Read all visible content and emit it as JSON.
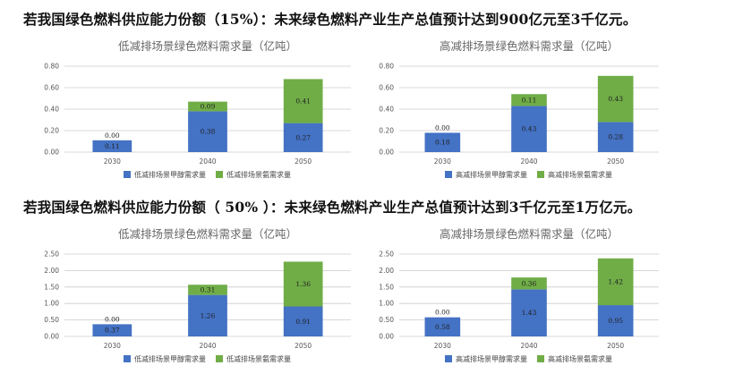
{
  "headings": {
    "h1": "若我国绿色燃料供应能力份额（15%）：未来绿色燃料产业生产总值预计达到900亿元至3千亿元。",
    "h2": "若我国绿色燃料供应能力份额（ 50% ）：未来绿色燃料产业生产总值预计达到3千亿元至1万亿元。"
  },
  "colors": {
    "methanol": "#4472c4",
    "ammonia": "#70ad47",
    "axis": "#cccccc",
    "title": "#666666"
  },
  "chart_data": [
    {
      "type": "bar",
      "stacked": true,
      "title": "低减排场景绿色燃料需求量（亿吨）",
      "categories": [
        "2030",
        "2040",
        "2050"
      ],
      "ylim": [
        0,
        0.8
      ],
      "yticks": [
        "0.00",
        "0.20",
        "0.40",
        "0.60",
        "0.80"
      ],
      "series": [
        {
          "name": "低减排场景甲醇需求量",
          "values": [
            0.11,
            0.38,
            0.27
          ],
          "labels": [
            "0.11",
            "0.38",
            "0.27"
          ]
        },
        {
          "name": "低减排场景氨需求量",
          "values": [
            0.0,
            0.09,
            0.41
          ],
          "labels": [
            "0.00",
            "0.09",
            "0.41"
          ]
        }
      ],
      "legend_position": "bottom"
    },
    {
      "type": "bar",
      "stacked": true,
      "title": "高减排场景绿色燃料需求量（亿吨）",
      "categories": [
        "2030",
        "2040",
        "2050"
      ],
      "ylim": [
        0,
        0.8
      ],
      "yticks": [
        "0.00",
        "0.20",
        "0.40",
        "0.60",
        "0.80"
      ],
      "series": [
        {
          "name": "高减排场景甲醇需求量",
          "values": [
            0.18,
            0.43,
            0.28
          ],
          "labels": [
            "0.18",
            "0.43",
            "0.28"
          ]
        },
        {
          "name": "高减排场景氨需求量",
          "values": [
            0.0,
            0.11,
            0.43
          ],
          "labels": [
            "0.00",
            "0.11",
            "0.43"
          ]
        }
      ],
      "legend_position": "bottom"
    },
    {
      "type": "bar",
      "stacked": true,
      "title": "低减排场景绿色燃料需求量（亿吨）",
      "categories": [
        "2030",
        "2040",
        "2050"
      ],
      "ylim": [
        0,
        2.5
      ],
      "yticks": [
        "0.00",
        "0.50",
        "1.00",
        "1.50",
        "2.00",
        "2.50"
      ],
      "series": [
        {
          "name": "低减排场景甲醇需求量",
          "values": [
            0.37,
            1.26,
            0.91
          ],
          "labels": [
            "0.37",
            "1.26",
            "0.91"
          ]
        },
        {
          "name": "低减排场景氨需求量",
          "values": [
            0.0,
            0.31,
            1.36
          ],
          "labels": [
            "0.00",
            "0.31",
            "1.36"
          ]
        }
      ],
      "legend_position": "bottom"
    },
    {
      "type": "bar",
      "stacked": true,
      "title": "高减排场景绿色燃料需求量（亿吨）",
      "categories": [
        "2030",
        "2040",
        "2050"
      ],
      "ylim": [
        0,
        2.5
      ],
      "yticks": [
        "0.00",
        "0.50",
        "1.00",
        "1.50",
        "2.00",
        "2.50"
      ],
      "series": [
        {
          "name": "高减排场景甲醇需求量",
          "values": [
            0.58,
            1.43,
            0.95
          ],
          "labels": [
            "0.58",
            "1.43",
            "0.95"
          ]
        },
        {
          "name": "高减排场景氨需求量",
          "values": [
            0.0,
            0.36,
            1.42
          ],
          "labels": [
            "0.00",
            "0.36",
            "1.42"
          ]
        }
      ],
      "legend_position": "bottom"
    }
  ]
}
